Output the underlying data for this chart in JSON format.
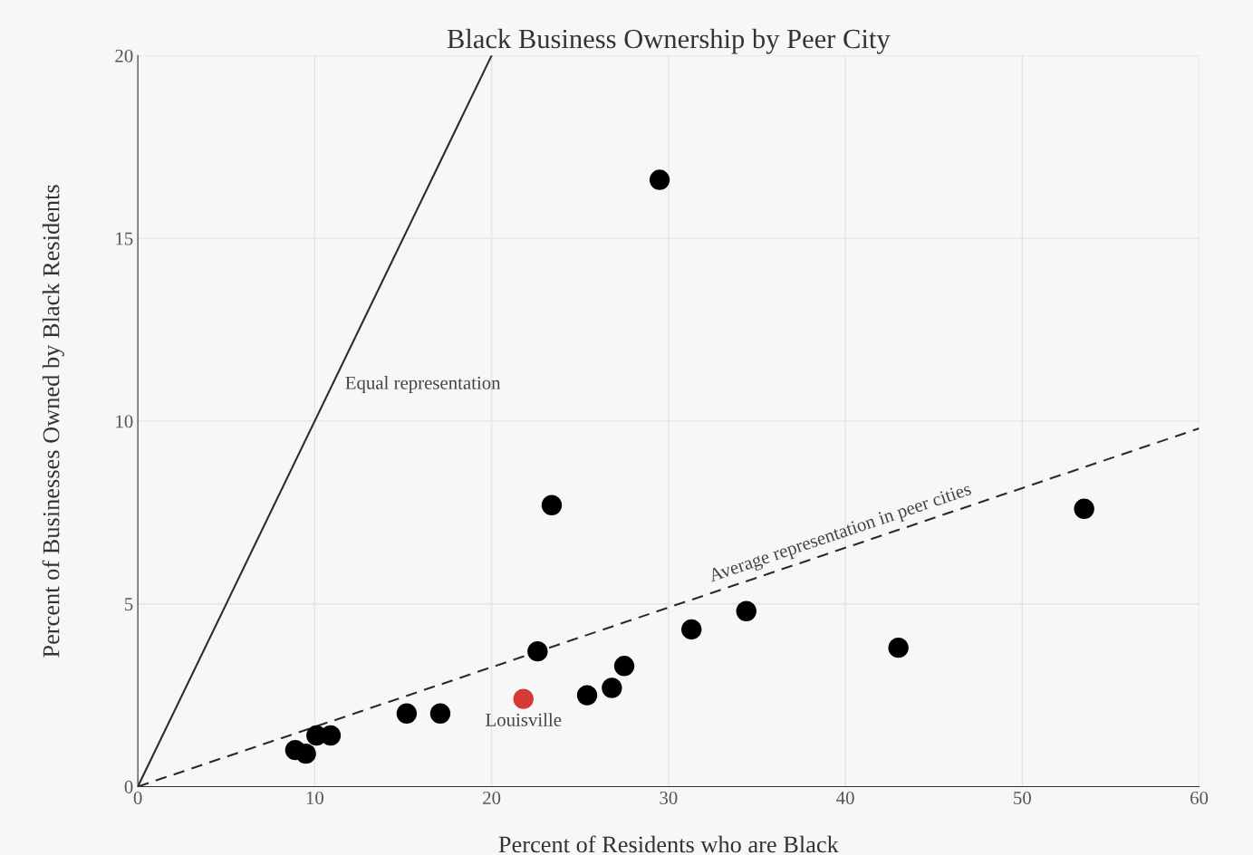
{
  "chart_data": {
    "type": "scatter",
    "title": "Black Business Ownership by Peer City",
    "xlabel": "Percent of Residents who are Black",
    "ylabel": "Percent of Businesses Owned by Black Residents",
    "xlim": [
      0,
      60
    ],
    "ylim": [
      0,
      20
    ],
    "xticks": [
      0,
      10,
      20,
      30,
      40,
      50,
      60
    ],
    "yticks": [
      0,
      5,
      10,
      15,
      20
    ],
    "grid": true,
    "series": [
      {
        "marker": "circle",
        "x": [
          8.9,
          9.5,
          10.1,
          10.9,
          15.2,
          17.1,
          21.8,
          22.6,
          23.4,
          25.4,
          26.8,
          27.5,
          29.5,
          31.3,
          34.4,
          43.0,
          53.5
        ],
        "values": [
          1.0,
          0.9,
          1.4,
          1.4,
          2.0,
          2.0,
          2.4,
          3.7,
          7.7,
          2.5,
          2.7,
          3.3,
          16.6,
          4.3,
          4.8,
          3.8,
          7.6
        ],
        "colors": [
          "#000000",
          "#000000",
          "#000000",
          "#000000",
          "#000000",
          "#000000",
          "#d43a3a",
          "#000000",
          "#000000",
          "#000000",
          "#000000",
          "#000000",
          "#000000",
          "#000000",
          "#000000",
          "#000000",
          "#000000"
        ]
      },
      {
        "type": "line",
        "x": [
          0,
          20
        ],
        "values": [
          0,
          20
        ],
        "color": "#2a2a3a",
        "line_style": "solid"
      },
      {
        "type": "line",
        "x": [
          0,
          60
        ],
        "values": [
          0,
          9.8
        ],
        "color": "#2a2a2a",
        "line_style": "dashed"
      }
    ],
    "annotations": [
      {
        "text": "Equal representation",
        "x": 11,
        "y": 11
      },
      {
        "text": "Average representation in peer cities",
        "x": 40,
        "y": 6.53
      },
      {
        "text": "Louisville",
        "x": 21.8,
        "y": 2.4
      }
    ]
  }
}
